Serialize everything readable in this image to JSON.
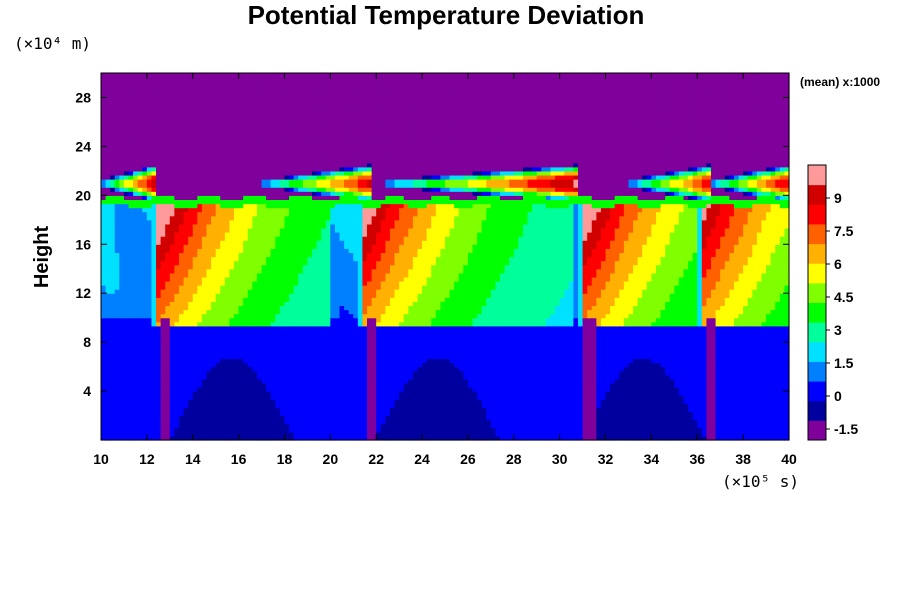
{
  "chart_data": {
    "type": "heatmap",
    "title": "Potential Temperature Deviation",
    "ylabel": "Height",
    "x_unit": "(×10⁵ s)",
    "y_unit": "(×10⁴ m)",
    "colorbar_note": "(mean) x:1000",
    "xlim": [
      10,
      40
    ],
    "ylim": [
      0,
      30
    ],
    "x_ticks": [
      "10",
      "12",
      "14",
      "16",
      "18",
      "20",
      "22",
      "24",
      "26",
      "28",
      "30",
      "32",
      "34",
      "36",
      "38",
      "40"
    ],
    "y_ticks": [
      "4",
      "8",
      "12",
      "16",
      "20",
      "24",
      "28"
    ],
    "colorbar_ticks": [
      "9",
      "7.5",
      "6",
      "4.5",
      "3",
      "1.5",
      "0",
      "-1.5"
    ],
    "colorbar_range": [
      -2,
      10.5
    ],
    "colormap": [
      "#7f009a",
      "#00009e",
      "#0000ff",
      "#0080ff",
      "#00e0ff",
      "#00ff9a",
      "#00ff00",
      "#80ff00",
      "#ffff00",
      "#ffb000",
      "#ff6000",
      "#ff0000",
      "#d00000",
      "#ff9a9a"
    ],
    "events": [
      {
        "start": 12.5,
        "end": 20.0,
        "peak": 9.5
      },
      {
        "start": 21.5,
        "end": 30.5,
        "peak": 9.0
      },
      {
        "start": 31.0,
        "end": 36.0,
        "peak": 9.5
      },
      {
        "start": 36.3,
        "end": 40.0,
        "peak": 8.5
      }
    ],
    "upper_blobs": [
      {
        "x_start": 10.0,
        "x_end": 12.4,
        "peak": 9.5
      },
      {
        "x_start": 17.0,
        "x_end": 21.8,
        "peak": 9.0
      },
      {
        "x_start": 22.5,
        "x_end": 30.8,
        "peak": 10.0
      },
      {
        "x_start": 33.0,
        "x_end": 36.5,
        "peak": 8.5
      },
      {
        "x_start": 36.5,
        "x_end": 40.0,
        "peak": 9.0
      }
    ]
  }
}
